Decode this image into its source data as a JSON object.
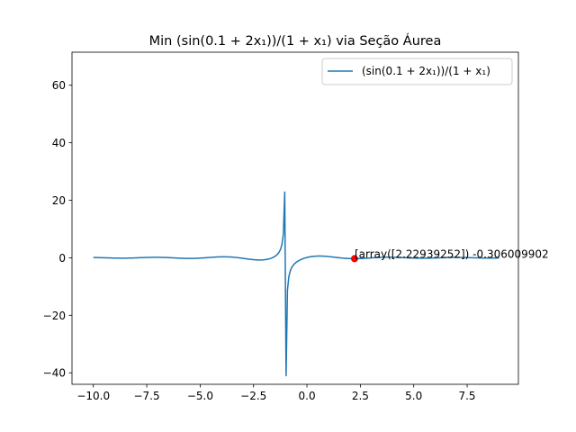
{
  "chart_data": {
    "type": "line",
    "title": "Min $(\\sin(0.1 + 2x_1))/(1 + x_1)$ via Seção Áurea",
    "title_display": "Min (sin(0.1 + 2x₁))/(1 + x₁) via Seção Áurea",
    "xlabel": "",
    "ylabel": "",
    "xlim": [
      -11.0,
      9.9
    ],
    "ylim": [
      -44.0,
      71.5
    ],
    "xticks": [
      -10.0,
      -7.5,
      -5.0,
      -2.5,
      0.0,
      2.5,
      5.0,
      7.5
    ],
    "xtick_labels": [
      "−10.0",
      "−7.5",
      "−5.0",
      "−2.5",
      "0.0",
      "2.5",
      "5.0",
      "7.5"
    ],
    "yticks": [
      -40,
      -20,
      0,
      20,
      40,
      60
    ],
    "ytick_labels": [
      "−40",
      "−20",
      "0",
      "20",
      "40",
      "60"
    ],
    "grid": false,
    "legend_position": "top-right",
    "series": [
      {
        "name": "(sin(0.1 + 2x₁))/(1 + x₁)",
        "color": "#1f77b4",
        "function": "sin(0.1+2*x)/(1+x)",
        "x_range": [
          -10,
          9
        ]
      }
    ],
    "marker": {
      "x": 2.22939252,
      "y": -0.306009902,
      "color": "#ff0000",
      "label": "[array([2.22939252]) -0.306009902"
    }
  }
}
